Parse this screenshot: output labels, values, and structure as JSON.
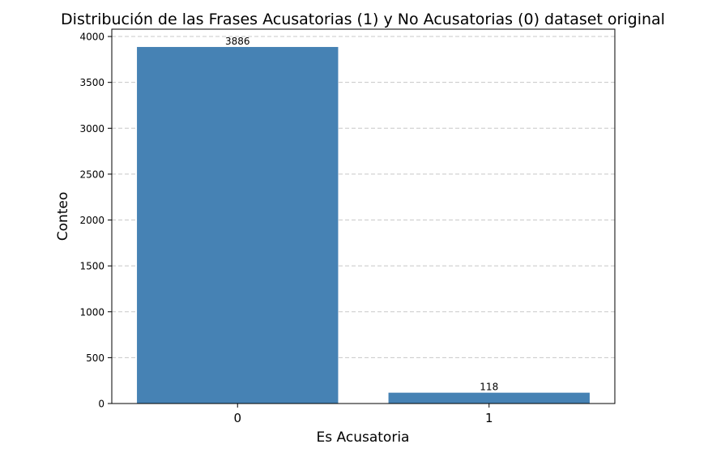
{
  "chart_data": {
    "type": "bar",
    "title": "Distribución de las Frases Acusatorias (1) y No Acusatorias (0) dataset original",
    "xlabel": "Es Acusatoria",
    "ylabel": "Conteo",
    "categories": [
      "0",
      "1"
    ],
    "values": [
      3886,
      118
    ],
    "data_labels": [
      "3886",
      "118"
    ],
    "ylim": [
      0,
      4080
    ],
    "yticks": [
      0,
      500,
      1000,
      1500,
      2000,
      2500,
      3000,
      3500,
      4000
    ],
    "ytick_labels": [
      "0",
      "500",
      "1000",
      "1500",
      "2000",
      "2500",
      "3000",
      "3500",
      "4000"
    ],
    "grid": "y-dashed",
    "bar_color": "#4682b4",
    "grid_color": "#c8c8c8"
  }
}
